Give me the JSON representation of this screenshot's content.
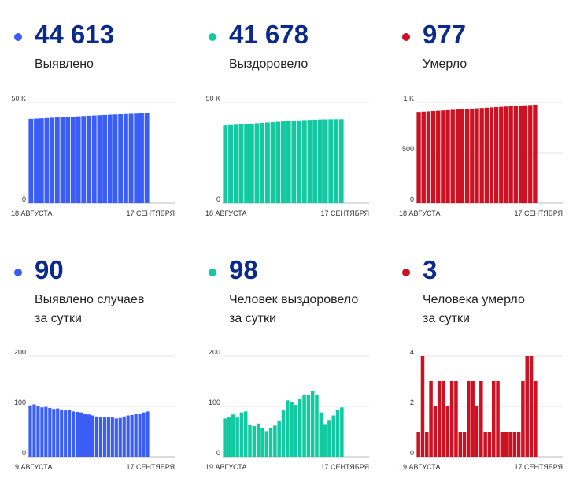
{
  "colors": {
    "blue": "#3a5ef5",
    "green": "#12c9a2",
    "red": "#cc1122",
    "number": "#0b2a8a"
  },
  "panels": [
    {
      "value": "44 613",
      "label": [
        "Выявлено"
      ],
      "color": "blue"
    },
    {
      "value": "41 678",
      "label": [
        "Выздоровело"
      ],
      "color": "green"
    },
    {
      "value": "977",
      "label": [
        "Умерло"
      ],
      "color": "red"
    },
    {
      "value": "90",
      "label": [
        "Выявлено случаев",
        "за сутки"
      ],
      "color": "blue"
    },
    {
      "value": "98",
      "label": [
        "Человек выздоровело",
        "за сутки"
      ],
      "color": "green"
    },
    {
      "value": "3",
      "label": [
        "Человека умерло",
        "за сутки"
      ],
      "color": "red"
    }
  ],
  "chart_data": [
    {
      "type": "bar",
      "color": "blue",
      "x_start": "18 АВГУСТА",
      "x_end": "17 СЕНТЯБРЯ",
      "yticks": [
        {
          "v": 0,
          "label": "0"
        },
        {
          "v": 50000,
          "label": "50 K"
        }
      ],
      "ylim": [
        0,
        50000
      ],
      "values": [
        41850,
        41990,
        42130,
        42270,
        42410,
        42550,
        42690,
        42830,
        42970,
        43110,
        43250,
        43390,
        43530,
        43670,
        43800,
        43920,
        44030,
        44140,
        44240,
        44340,
        44430,
        44520,
        44613
      ]
    },
    {
      "type": "bar",
      "color": "green",
      "x_start": "18 АВГУСТА",
      "x_end": "17 СЕНТЯБРЯ",
      "yticks": [
        {
          "v": 0,
          "label": "0"
        },
        {
          "v": 50000,
          "label": "50 K"
        }
      ],
      "ylim": [
        0,
        50000
      ],
      "values": [
        38600,
        38780,
        38960,
        39140,
        39320,
        39500,
        39680,
        39860,
        40040,
        40220,
        40400,
        40580,
        40760,
        40940,
        41100,
        41240,
        41360,
        41460,
        41540,
        41600,
        41640,
        41660,
        41678
      ]
    },
    {
      "type": "bar",
      "color": "red",
      "x_start": "18 АВГУСТА",
      "x_end": "17 СЕНТЯБРЯ",
      "yticks": [
        {
          "v": 0,
          "label": "0"
        },
        {
          "v": 500,
          "label": "500"
        },
        {
          "v": 1000,
          "label": "1 K"
        }
      ],
      "ylim": [
        0,
        1000
      ],
      "values": [
        905,
        908,
        911,
        914,
        917,
        920,
        923,
        926,
        929,
        932,
        935,
        938,
        941,
        944,
        947,
        950,
        953,
        956,
        959,
        962,
        965,
        968,
        971,
        974,
        977
      ]
    },
    {
      "type": "bar",
      "color": "blue",
      "x_start": "19 АВГУСТА",
      "x_end": "17 СЕНТЯБРЯ",
      "yticks": [
        {
          "v": 0,
          "label": "0"
        },
        {
          "v": 100,
          "label": "100"
        },
        {
          "v": 200,
          "label": "200"
        }
      ],
      "ylim": [
        0,
        200
      ],
      "values": [
        102,
        104,
        100,
        98,
        99,
        97,
        95,
        96,
        94,
        92,
        93,
        90,
        89,
        88,
        86,
        84,
        82,
        80,
        79,
        78,
        79,
        78,
        76,
        77,
        80,
        82,
        83,
        85,
        86,
        88,
        90
      ]
    },
    {
      "type": "bar",
      "color": "green",
      "x_start": "19 АВГУСТА",
      "x_end": "17 СЕНТЯБРЯ",
      "yticks": [
        {
          "v": 0,
          "label": "0"
        },
        {
          "v": 100,
          "label": "100"
        },
        {
          "v": 200,
          "label": "200"
        }
      ],
      "ylim": [
        0,
        200
      ],
      "values": [
        76,
        78,
        84,
        78,
        88,
        90,
        63,
        61,
        66,
        57,
        51,
        58,
        62,
        72,
        92,
        112,
        108,
        103,
        115,
        122,
        123,
        130,
        122,
        88,
        65,
        73,
        82,
        93,
        98
      ]
    },
    {
      "type": "bar",
      "color": "red",
      "x_start": "19 АВГУСТА",
      "x_end": "17 СЕНТЯБРЯ",
      "yticks": [
        {
          "v": 0,
          "label": "0"
        },
        {
          "v": 2,
          "label": "2"
        },
        {
          "v": 4,
          "label": "4"
        }
      ],
      "ylim": [
        0,
        4
      ],
      "values": [
        1,
        4,
        1,
        3,
        2,
        3,
        3,
        2,
        3,
        3,
        1,
        1,
        3,
        3,
        2,
        3,
        1,
        1,
        3,
        3,
        1,
        1,
        1,
        1,
        1,
        3,
        4,
        4,
        3
      ]
    }
  ]
}
